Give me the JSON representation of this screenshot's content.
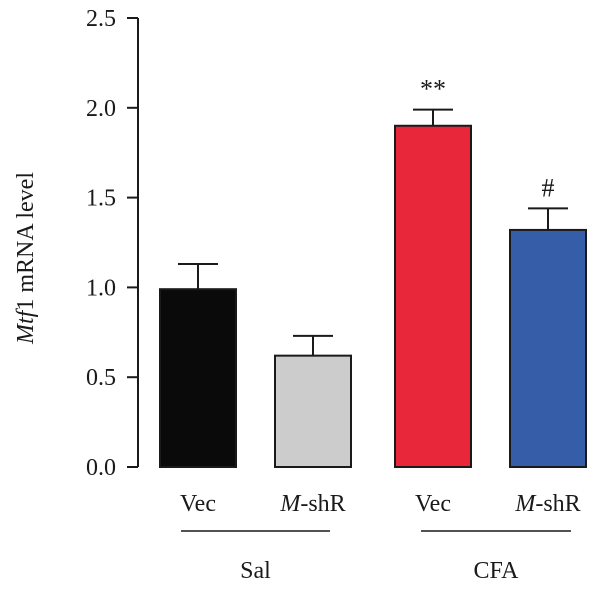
{
  "chart_data": {
    "type": "bar",
    "ylabel_italic": "Mtf",
    "ylabel_rest": "1 mRNA level",
    "ylim": [
      0,
      2.5
    ],
    "yticks": [
      "0.0",
      "0.5",
      "1.0",
      "1.5",
      "2.0",
      "2.5"
    ],
    "ytick_values": [
      0,
      0.5,
      1.0,
      1.5,
      2.0,
      2.5
    ],
    "grid": false,
    "bars": [
      {
        "category": "Vec",
        "category_italic": "",
        "category_rest": "Vec",
        "group": "Sal",
        "value": 0.99,
        "error": 0.14,
        "color": "#0a0a0a",
        "annotation": ""
      },
      {
        "category": "M-shR",
        "category_italic": "M",
        "category_rest": "-shR",
        "group": "Sal",
        "value": 0.62,
        "error": 0.11,
        "color": "#cccccc",
        "annotation": ""
      },
      {
        "category": "Vec",
        "category_italic": "",
        "category_rest": "Vec",
        "group": "CFA",
        "value": 1.9,
        "error": 0.09,
        "color": "#e8283a",
        "annotation": "**"
      },
      {
        "category": "M-shR",
        "category_italic": "M",
        "category_rest": "-shR",
        "group": "CFA",
        "value": 1.32,
        "error": 0.12,
        "color": "#365ea8",
        "annotation": "#"
      }
    ],
    "groups": [
      "Sal",
      "CFA"
    ]
  }
}
